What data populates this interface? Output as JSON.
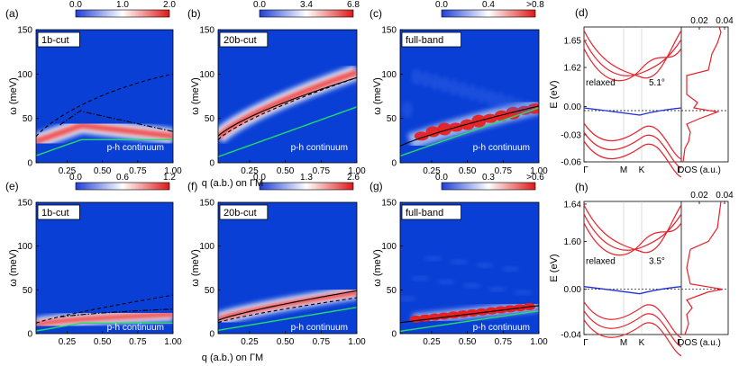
{
  "figure": {
    "common_xlabel": "q (a.b.) on ΓM",
    "row_ylabel": "ω (meV)",
    "panels": [
      {
        "id": "a",
        "label": "(a)",
        "box_label": "1b-cut",
        "continuum": "p-h continuum",
        "cbar_ticks": [
          "0.0",
          "1.0",
          "2.0"
        ],
        "yticks": [
          "0",
          "50",
          "100",
          "150"
        ],
        "xticks": [
          "0.25",
          "0.50",
          "0.75",
          "1.00"
        ]
      },
      {
        "id": "b",
        "label": "(b)",
        "box_label": "20b-cut",
        "continuum": "p-h continuum",
        "cbar_ticks": [
          "0.0",
          "3.4",
          "6.8"
        ],
        "yticks": [
          "0",
          "50",
          "100",
          "150"
        ],
        "xticks": [
          "0.25",
          "0.50",
          "0.75",
          "1.00"
        ]
      },
      {
        "id": "c",
        "label": "(c)",
        "box_label": "full-band",
        "continuum": "p-h continuum",
        "cbar_ticks": [
          "0.0",
          "0.4",
          ">0.8"
        ],
        "yticks": [
          "0",
          "50",
          "100",
          "150"
        ],
        "xticks": [
          "0.25",
          "0.50",
          "0.75",
          "1.00"
        ]
      },
      {
        "id": "e",
        "label": "(e)",
        "box_label": "1b-cut",
        "continuum": "p-h continuum",
        "cbar_ticks": [
          "0.0",
          "0.6",
          "1.2"
        ],
        "yticks": [
          "0",
          "50",
          "100",
          "150"
        ],
        "xticks": [
          "0.25",
          "0.50",
          "0.75",
          "1.00"
        ]
      },
      {
        "id": "f",
        "label": "(f)",
        "box_label": "20b-cut",
        "continuum": "p-h continuum",
        "cbar_ticks": [
          "0.0",
          "1.3",
          "2.6"
        ],
        "yticks": [
          "0",
          "50",
          "100",
          "150"
        ],
        "xticks": [
          "0.25",
          "0.50",
          "0.75",
          "1.00"
        ]
      },
      {
        "id": "g",
        "label": "(g)",
        "box_label": "full-band",
        "continuum": "p-h continuum",
        "cbar_ticks": [
          "0.0",
          "0.3",
          ">0.6"
        ],
        "yticks": [
          "0",
          "50",
          "100",
          "150"
        ],
        "xticks": [
          "0.25",
          "0.50",
          "0.75",
          "1.00"
        ]
      }
    ],
    "band_panels": [
      {
        "id": "d",
        "label": "(d)",
        "ylabel": "E (eV)",
        "annotation": "relaxed",
        "angle": "5.1°",
        "yticks": [
          "1.65",
          "1.62",
          "0.00",
          "-0.03",
          "-0.06"
        ],
        "kpoints": [
          "Γ",
          "M",
          "K",
          "Γ"
        ],
        "dos_label": "DOS (a.u.)",
        "dos_ticks": [
          "0.02",
          "0.04"
        ]
      },
      {
        "id": "h",
        "label": "(h)",
        "ylabel": "E (eV)",
        "annotation": "relaxed",
        "angle": "3.5°",
        "yticks": [
          "1.64",
          "1.60",
          "0.00",
          "-0.04"
        ],
        "kpoints": [
          "Γ",
          "M",
          "K",
          "Γ"
        ],
        "dos_label": "DOS (a.u.)",
        "dos_ticks": [
          "0.02",
          "0.04"
        ]
      }
    ],
    "colors": {
      "map_bg": "#0a3fd6",
      "cbar_low": "#1f3fd8",
      "cbar_mid": "#ffffff",
      "cbar_high": "#e01818",
      "band_red": "#e8202a",
      "band_blue": "#1f2fd8",
      "continuum_green": "#22dd66"
    }
  }
}
